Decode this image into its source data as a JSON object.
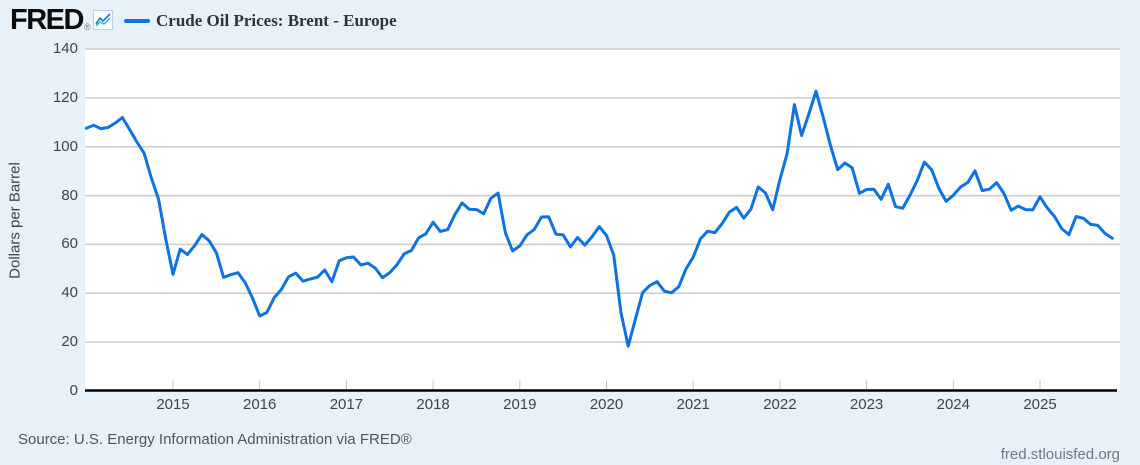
{
  "header": {
    "logo_text": "FRED",
    "registered_mark": "®",
    "legend": {
      "series_label": "Crude Oil Prices: Brent - Europe",
      "swatch_color": "#0e73e1"
    }
  },
  "chart_data": {
    "type": "line",
    "title": "Crude Oil Prices: Brent - Europe",
    "ylabel": "Dollars per Barrel",
    "ylim": [
      0,
      140
    ],
    "y_ticks": [
      0,
      20,
      40,
      60,
      80,
      100,
      120,
      140
    ],
    "x_tick_labels": [
      "2015",
      "2016",
      "2017",
      "2018",
      "2019",
      "2020",
      "2021",
      "2022",
      "2023",
      "2024",
      "2025"
    ],
    "frequency": "monthly",
    "x_start": "2014-01",
    "x_end": "2025-11",
    "grid": true,
    "legend_position": "top-left",
    "line_color": "#0e73e1",
    "values": [
      107.57,
      108.81,
      107.41,
      107.88,
      109.68,
      111.97,
      106.98,
      101.92,
      97.34,
      87.27,
      78.44,
      62.16,
      47.76,
      58.1,
      55.89,
      59.52,
      64.08,
      61.48,
      56.56,
      46.52,
      47.62,
      48.43,
      44.27,
      38.01,
      30.7,
      32.18,
      38.21,
      41.58,
      46.74,
      48.25,
      44.95,
      45.84,
      46.57,
      49.52,
      44.73,
      53.31,
      54.58,
      54.87,
      51.59,
      52.31,
      50.33,
      46.37,
      48.48,
      51.7,
      56.15,
      57.51,
      62.71,
      64.37,
      69.08,
      65.32,
      66.02,
      72.11,
      76.98,
      74.41,
      74.25,
      72.53,
      78.89,
      81.03,
      64.75,
      57.36,
      59.41,
      63.96,
      66.14,
      71.23,
      71.32,
      64.22,
      63.92,
      59.04,
      62.83,
      59.71,
      63.21,
      67.31,
      63.65,
      55.66,
      32.01,
      18.38,
      29.38,
      40.27,
      43.24,
      44.74,
      40.91,
      40.19,
      42.69,
      49.99,
      54.77,
      62.28,
      65.41,
      64.81,
      68.53,
      73.16,
      75.17,
      70.75,
      74.49,
      83.54,
      81.05,
      74.17,
      86.51,
      97.13,
      117.25,
      104.58,
      113.34,
      122.71,
      111.93,
      100.45,
      90.61,
      93.33,
      91.42,
      80.92,
      82.5,
      82.59,
      78.43,
      84.64,
      75.47,
      74.84,
      80.11,
      86.15,
      93.72,
      90.6,
      82.94,
      77.63,
      80.12,
      83.48,
      85.41,
      90.15,
      82.03,
      82.61,
      85.31,
      80.88,
      74.01,
      75.68,
      74.26,
      74.15,
      79.5,
      74.95,
      71.48,
      66.46,
      64.01,
      71.45,
      70.7,
      68.2,
      67.8,
      64.5,
      62.5
    ]
  },
  "colors": {
    "page_background": "#e7f1fa",
    "plot_background": "#ffffff",
    "gridline": "#cccccc",
    "axis": "#000000",
    "tick_mark": "#b9c3cd",
    "tick_label": "#444444"
  },
  "source_text": "Source: U.S. Energy Information Administration via FRED®",
  "footer_link": "fred.stlouisfed.org"
}
